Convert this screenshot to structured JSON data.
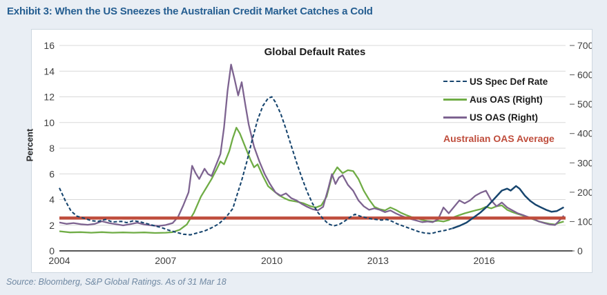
{
  "header": {
    "title": "Exhibit 3: When the US Sneezes the Australian Credit Market Catches a Cold"
  },
  "footer": {
    "source": "Source: Bloomberg, S&P Global Ratings. As of 31 Mar 18"
  },
  "colors": {
    "title": "#255e91",
    "panel_background": "#ffffff",
    "page_background": "#e9eef4",
    "gridline": "#d8d8d8",
    "axis_line": "#555555",
    "tick_text": "#3f3f3f",
    "us_spec_def": "#17456e",
    "aus_oas": "#6fac45",
    "us_oas": "#7d6390",
    "average_line": "#bf4d3c",
    "source_text": "#6f88a2"
  },
  "chart_data": {
    "type": "line",
    "title": "Global Default Rates",
    "ylabel_left": "Percent",
    "legend_position": "inside top-right",
    "grid": "horizontal gridlines at left-axis ticks",
    "left_axis": {
      "min": 0,
      "max": 16,
      "ticks": [
        0,
        2,
        4,
        6,
        8,
        10,
        12,
        14,
        16
      ]
    },
    "right_axis": {
      "min": 0,
      "max": 700,
      "ticks": [
        0,
        100,
        200,
        300,
        400,
        500,
        600,
        700
      ]
    },
    "x_axis": {
      "min": 2004,
      "max": 2018.3,
      "ticks": [
        2004,
        2007,
        2010,
        2013,
        2016
      ]
    },
    "average_line": {
      "label": "Australian OAS Average",
      "value_right_axis": 112,
      "color": "#bf4d3c"
    },
    "series": [
      {
        "name": "US Spec Def Rate",
        "axis": "left",
        "style": "dashed",
        "solid_from": 2015.1,
        "color": "#17456e",
        "points": [
          [
            2004.0,
            4.9
          ],
          [
            2004.17,
            3.9
          ],
          [
            2004.33,
            3.1
          ],
          [
            2004.5,
            2.7
          ],
          [
            2004.75,
            2.5
          ],
          [
            2004.9,
            2.35
          ],
          [
            2005.1,
            2.3
          ],
          [
            2005.3,
            2.45
          ],
          [
            2005.5,
            2.25
          ],
          [
            2005.75,
            2.3
          ],
          [
            2005.9,
            2.2
          ],
          [
            2006.1,
            2.35
          ],
          [
            2006.3,
            2.25
          ],
          [
            2006.5,
            2.1
          ],
          [
            2006.7,
            1.95
          ],
          [
            2006.9,
            1.8
          ],
          [
            2007.1,
            1.6
          ],
          [
            2007.3,
            1.45
          ],
          [
            2007.5,
            1.3
          ],
          [
            2007.7,
            1.25
          ],
          [
            2007.9,
            1.4
          ],
          [
            2008.1,
            1.55
          ],
          [
            2008.3,
            1.8
          ],
          [
            2008.5,
            2.1
          ],
          [
            2008.7,
            2.6
          ],
          [
            2008.9,
            3.3
          ],
          [
            2009.0,
            4.2
          ],
          [
            2009.15,
            5.5
          ],
          [
            2009.3,
            7.0
          ],
          [
            2009.45,
            8.7
          ],
          [
            2009.6,
            10.2
          ],
          [
            2009.75,
            11.3
          ],
          [
            2009.9,
            11.9
          ],
          [
            2010.0,
            12.0
          ],
          [
            2010.1,
            11.6
          ],
          [
            2010.25,
            10.7
          ],
          [
            2010.4,
            9.5
          ],
          [
            2010.55,
            8.2
          ],
          [
            2010.7,
            6.9
          ],
          [
            2010.85,
            5.7
          ],
          [
            2011.0,
            4.6
          ],
          [
            2011.15,
            3.7
          ],
          [
            2011.3,
            3.0
          ],
          [
            2011.45,
            2.5
          ],
          [
            2011.6,
            2.1
          ],
          [
            2011.75,
            1.95
          ],
          [
            2011.9,
            2.05
          ],
          [
            2012.05,
            2.3
          ],
          [
            2012.2,
            2.6
          ],
          [
            2012.35,
            2.85
          ],
          [
            2012.5,
            2.7
          ],
          [
            2012.65,
            2.6
          ],
          [
            2012.8,
            2.5
          ],
          [
            2012.95,
            2.45
          ],
          [
            2013.1,
            2.4
          ],
          [
            2013.25,
            2.45
          ],
          [
            2013.4,
            2.3
          ],
          [
            2013.55,
            2.1
          ],
          [
            2013.7,
            1.95
          ],
          [
            2013.85,
            1.8
          ],
          [
            2014.0,
            1.65
          ],
          [
            2014.15,
            1.5
          ],
          [
            2014.3,
            1.4
          ],
          [
            2014.5,
            1.35
          ],
          [
            2014.7,
            1.5
          ],
          [
            2014.9,
            1.6
          ],
          [
            2015.1,
            1.75
          ],
          [
            2015.3,
            1.95
          ],
          [
            2015.5,
            2.2
          ],
          [
            2015.7,
            2.6
          ],
          [
            2015.9,
            3.0
          ],
          [
            2016.1,
            3.5
          ],
          [
            2016.3,
            4.1
          ],
          [
            2016.5,
            4.7
          ],
          [
            2016.65,
            4.85
          ],
          [
            2016.75,
            4.7
          ],
          [
            2016.9,
            5.05
          ],
          [
            2017.0,
            4.85
          ],
          [
            2017.15,
            4.3
          ],
          [
            2017.3,
            3.9
          ],
          [
            2017.45,
            3.6
          ],
          [
            2017.6,
            3.4
          ],
          [
            2017.75,
            3.2
          ],
          [
            2017.9,
            3.05
          ],
          [
            2018.05,
            3.1
          ],
          [
            2018.25,
            3.4
          ]
        ]
      },
      {
        "name": "Aus OAS (Right)",
        "axis": "right",
        "style": "solid",
        "color": "#6fac45",
        "points": [
          [
            2004.0,
            67
          ],
          [
            2004.3,
            63
          ],
          [
            2004.6,
            64
          ],
          [
            2004.9,
            62
          ],
          [
            2005.2,
            64
          ],
          [
            2005.5,
            62
          ],
          [
            2005.8,
            63
          ],
          [
            2006.1,
            62
          ],
          [
            2006.4,
            63
          ],
          [
            2006.7,
            61
          ],
          [
            2007.0,
            62
          ],
          [
            2007.2,
            64
          ],
          [
            2007.4,
            72
          ],
          [
            2007.6,
            90
          ],
          [
            2007.8,
            130
          ],
          [
            2008.0,
            185
          ],
          [
            2008.15,
            215
          ],
          [
            2008.3,
            245
          ],
          [
            2008.45,
            280
          ],
          [
            2008.55,
            305
          ],
          [
            2008.65,
            295
          ],
          [
            2008.8,
            340
          ],
          [
            2008.9,
            385
          ],
          [
            2009.0,
            420
          ],
          [
            2009.1,
            400
          ],
          [
            2009.25,
            355
          ],
          [
            2009.4,
            310
          ],
          [
            2009.5,
            285
          ],
          [
            2009.6,
            295
          ],
          [
            2009.75,
            255
          ],
          [
            2009.9,
            220
          ],
          [
            2010.05,
            205
          ],
          [
            2010.2,
            190
          ],
          [
            2010.35,
            180
          ],
          [
            2010.5,
            172
          ],
          [
            2010.7,
            168
          ],
          [
            2010.9,
            162
          ],
          [
            2011.1,
            152
          ],
          [
            2011.25,
            148
          ],
          [
            2011.4,
            155
          ],
          [
            2011.55,
            185
          ],
          [
            2011.7,
            255
          ],
          [
            2011.85,
            285
          ],
          [
            2012.0,
            265
          ],
          [
            2012.15,
            275
          ],
          [
            2012.3,
            272
          ],
          [
            2012.45,
            245
          ],
          [
            2012.6,
            205
          ],
          [
            2012.75,
            175
          ],
          [
            2012.9,
            150
          ],
          [
            2013.05,
            142
          ],
          [
            2013.2,
            138
          ],
          [
            2013.35,
            148
          ],
          [
            2013.5,
            140
          ],
          [
            2013.65,
            130
          ],
          [
            2013.8,
            122
          ],
          [
            2013.95,
            115
          ],
          [
            2014.1,
            112
          ],
          [
            2014.25,
            105
          ],
          [
            2014.4,
            102
          ],
          [
            2014.55,
            100
          ],
          [
            2014.7,
            103
          ],
          [
            2014.85,
            100
          ],
          [
            2015.0,
            105
          ],
          [
            2015.15,
            115
          ],
          [
            2015.3,
            122
          ],
          [
            2015.45,
            128
          ],
          [
            2015.6,
            133
          ],
          [
            2015.75,
            138
          ],
          [
            2015.9,
            142
          ],
          [
            2016.05,
            150
          ],
          [
            2016.2,
            145
          ],
          [
            2016.35,
            152
          ],
          [
            2016.5,
            155
          ],
          [
            2016.65,
            140
          ],
          [
            2016.8,
            132
          ],
          [
            2016.95,
            126
          ],
          [
            2017.1,
            120
          ],
          [
            2017.25,
            113
          ],
          [
            2017.4,
            107
          ],
          [
            2017.55,
            100
          ],
          [
            2017.7,
            96
          ],
          [
            2017.85,
            92
          ],
          [
            2018.0,
            90
          ],
          [
            2018.1,
            95
          ],
          [
            2018.25,
            100
          ]
        ]
      },
      {
        "name": "US OAS (Right)",
        "axis": "right",
        "style": "solid",
        "color": "#7d6390",
        "points": [
          [
            2004.0,
            97
          ],
          [
            2004.2,
            92
          ],
          [
            2004.4,
            95
          ],
          [
            2004.6,
            91
          ],
          [
            2004.8,
            89
          ],
          [
            2005.0,
            92
          ],
          [
            2005.2,
            101
          ],
          [
            2005.4,
            95
          ],
          [
            2005.6,
            91
          ],
          [
            2005.8,
            87
          ],
          [
            2006.0,
            91
          ],
          [
            2006.2,
            96
          ],
          [
            2006.4,
            90
          ],
          [
            2006.6,
            87
          ],
          [
            2006.8,
            85
          ],
          [
            2007.0,
            88
          ],
          [
            2007.2,
            95
          ],
          [
            2007.35,
            115
          ],
          [
            2007.5,
            155
          ],
          [
            2007.65,
            200
          ],
          [
            2007.75,
            290
          ],
          [
            2007.85,
            265
          ],
          [
            2007.95,
            245
          ],
          [
            2008.1,
            280
          ],
          [
            2008.2,
            262
          ],
          [
            2008.3,
            255
          ],
          [
            2008.45,
            300
          ],
          [
            2008.55,
            330
          ],
          [
            2008.65,
            420
          ],
          [
            2008.75,
            545
          ],
          [
            2008.85,
            635
          ],
          [
            2008.95,
            585
          ],
          [
            2009.05,
            530
          ],
          [
            2009.15,
            575
          ],
          [
            2009.25,
            500
          ],
          [
            2009.35,
            430
          ],
          [
            2009.5,
            355
          ],
          [
            2009.65,
            305
          ],
          [
            2009.8,
            262
          ],
          [
            2009.95,
            228
          ],
          [
            2010.1,
            200
          ],
          [
            2010.25,
            188
          ],
          [
            2010.4,
            196
          ],
          [
            2010.55,
            180
          ],
          [
            2010.7,
            172
          ],
          [
            2010.85,
            160
          ],
          [
            2011.0,
            150
          ],
          [
            2011.15,
            142
          ],
          [
            2011.3,
            138
          ],
          [
            2011.45,
            150
          ],
          [
            2011.6,
            215
          ],
          [
            2011.7,
            262
          ],
          [
            2011.8,
            228
          ],
          [
            2011.9,
            250
          ],
          [
            2012.0,
            258
          ],
          [
            2012.15,
            225
          ],
          [
            2012.3,
            205
          ],
          [
            2012.45,
            172
          ],
          [
            2012.6,
            152
          ],
          [
            2012.75,
            140
          ],
          [
            2012.9,
            145
          ],
          [
            2013.05,
            140
          ],
          [
            2013.2,
            132
          ],
          [
            2013.35,
            138
          ],
          [
            2013.5,
            128
          ],
          [
            2013.65,
            120
          ],
          [
            2013.8,
            113
          ],
          [
            2013.95,
            108
          ],
          [
            2014.1,
            103
          ],
          [
            2014.25,
            98
          ],
          [
            2014.4,
            100
          ],
          [
            2014.55,
            98
          ],
          [
            2014.7,
            108
          ],
          [
            2014.85,
            148
          ],
          [
            2015.0,
            128
          ],
          [
            2015.15,
            150
          ],
          [
            2015.3,
            172
          ],
          [
            2015.45,
            162
          ],
          [
            2015.6,
            172
          ],
          [
            2015.75,
            188
          ],
          [
            2015.9,
            198
          ],
          [
            2016.05,
            205
          ],
          [
            2016.2,
            172
          ],
          [
            2016.35,
            152
          ],
          [
            2016.5,
            165
          ],
          [
            2016.65,
            148
          ],
          [
            2016.8,
            138
          ],
          [
            2016.95,
            128
          ],
          [
            2017.1,
            122
          ],
          [
            2017.25,
            115
          ],
          [
            2017.4,
            108
          ],
          [
            2017.55,
            100
          ],
          [
            2017.7,
            95
          ],
          [
            2017.85,
            90
          ],
          [
            2018.0,
            88
          ],
          [
            2018.1,
            100
          ],
          [
            2018.25,
            120
          ]
        ]
      }
    ]
  }
}
